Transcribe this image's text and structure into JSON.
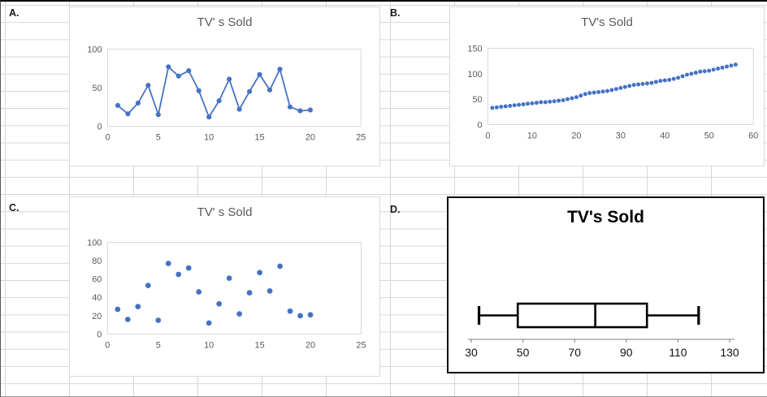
{
  "cells": {
    "label_a": "A.",
    "label_b": "B.",
    "label_c": "C.",
    "label_d": "D."
  },
  "accent_color": "#4472C4",
  "chart_data": [
    {
      "id": "A",
      "type": "line",
      "title": "TV' s Sold",
      "x": [
        1,
        2,
        3,
        4,
        5,
        6,
        7,
        8,
        9,
        10,
        11,
        12,
        13,
        14,
        15,
        16,
        17,
        18,
        19,
        20
      ],
      "y": [
        27,
        16,
        30,
        53,
        15,
        77,
        65,
        72,
        46,
        12,
        33,
        61,
        22,
        45,
        67,
        47,
        74,
        25,
        20,
        21
      ],
      "xlim": [
        0,
        25
      ],
      "ylim": [
        0,
        100
      ],
      "xticks": [
        0,
        5,
        10,
        15,
        20,
        25
      ],
      "yticks": [
        0,
        50,
        100
      ],
      "legend": "none",
      "grid": "off",
      "color": "#4472C4"
    },
    {
      "id": "B",
      "type": "scatter",
      "title": "TV's Sold",
      "x": [
        1,
        2,
        3,
        4,
        5,
        6,
        7,
        8,
        9,
        10,
        11,
        12,
        13,
        14,
        15,
        16,
        17,
        18,
        19,
        20,
        21,
        22,
        23,
        24,
        25,
        26,
        27,
        28,
        29,
        30,
        31,
        32,
        33,
        34,
        35,
        36,
        37,
        38,
        39,
        40,
        41,
        42,
        43,
        44,
        45,
        46,
        47,
        48,
        49,
        50,
        51,
        52,
        53,
        54,
        55,
        56
      ],
      "y": [
        33,
        34,
        35,
        36,
        37,
        38,
        39,
        40,
        41,
        42,
        43,
        44,
        44,
        45,
        46,
        47,
        48,
        50,
        52,
        54,
        57,
        60,
        62,
        63,
        64,
        65,
        66,
        68,
        70,
        72,
        74,
        76,
        78,
        79,
        80,
        81,
        82,
        84,
        86,
        87,
        88,
        90,
        92,
        95,
        98,
        100,
        102,
        104,
        105,
        106,
        108,
        110,
        112,
        114,
        116,
        118
      ],
      "xlim": [
        0,
        60
      ],
      "ylim": [
        0,
        150
      ],
      "xticks": [
        0,
        10,
        20,
        30,
        40,
        50,
        60
      ],
      "yticks": [
        0,
        50,
        100,
        150
      ],
      "legend": "none",
      "grid": "off",
      "color": "#4472C4"
    },
    {
      "id": "C",
      "type": "scatter",
      "title": "TV' s Sold",
      "x": [
        1,
        2,
        3,
        4,
        5,
        6,
        7,
        8,
        9,
        10,
        11,
        12,
        13,
        14,
        15,
        16,
        17,
        18,
        19,
        20
      ],
      "y": [
        27,
        16,
        30,
        53,
        15,
        77,
        65,
        72,
        46,
        12,
        33,
        61,
        22,
        45,
        67,
        47,
        74,
        25,
        20,
        21
      ],
      "xlim": [
        0,
        25
      ],
      "ylim": [
        0,
        100
      ],
      "xticks": [
        0,
        5,
        10,
        15,
        20,
        25
      ],
      "yticks": [
        0,
        20,
        40,
        60,
        80,
        100
      ],
      "legend": "none",
      "grid": "off",
      "color": "#4472C4"
    },
    {
      "id": "D",
      "type": "boxplot",
      "title": "TV's Sold",
      "min": 33,
      "q1": 48,
      "median": 78,
      "q3": 98,
      "max": 118,
      "xlim": [
        30,
        130
      ],
      "xticks": [
        30,
        50,
        70,
        90,
        110,
        130
      ],
      "color": "#000000"
    }
  ]
}
